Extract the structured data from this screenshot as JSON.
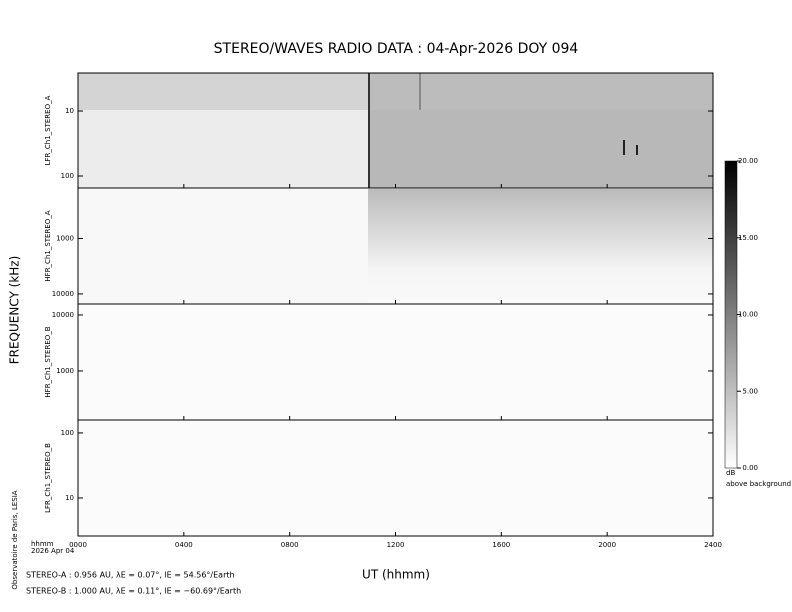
{
  "title": "STEREO/WAVES  RADIO  DATA : 04-Apr-2026  DOY 094",
  "ylabel": "FREQUENCY (kHz)",
  "xlabel": "UT (hhmm)",
  "time_unit": "hhmm",
  "date": "2026 Apr 04",
  "credit": "Observatoire de Paris, LESIA",
  "ephemeris": [
    "STEREO-A : 0.956 AU, λE = 0.07°, lE = 54.56°/Earth",
    "STEREO-B : 1.000 AU, λE = 0.11°, lE = −60.69°/Earth"
  ],
  "chart_data": [
    {
      "type": "spectrogram",
      "ylabel": "LFR_Ch1_STEREO_A",
      "log_scale": true,
      "ylim": [
        153,
        2.6
      ],
      "yticks": [
        10,
        100
      ],
      "xlim": [
        0,
        2400
      ]
    },
    {
      "type": "spectrogram",
      "ylabel": "HFR_Ch1_STEREO_A",
      "log_scale": true,
      "ylim": [
        15200,
        123
      ],
      "yticks": [
        1000,
        10000
      ],
      "xlim": [
        0,
        2400
      ]
    },
    {
      "type": "spectrogram",
      "ylabel": "HFR_Ch1_STEREO_B",
      "log_scale": true,
      "ylim": [
        133,
        15700
      ],
      "yticks": [
        1000,
        10000
      ],
      "xlim": [
        0,
        2400
      ]
    },
    {
      "type": "spectrogram",
      "ylabel": "LFR_Ch1_STEREO_B",
      "log_scale": true,
      "ylim": [
        2.6,
        158
      ],
      "yticks": [
        10,
        100
      ],
      "xlim": [
        0,
        2400
      ],
      "xticks": [
        {
          "value": 0,
          "label": "0000"
        },
        {
          "value": 400,
          "label": "0400"
        },
        {
          "value": 800,
          "label": "0800"
        },
        {
          "value": 1200,
          "label": "1200"
        },
        {
          "value": 1600,
          "label": "1600"
        },
        {
          "value": 2000,
          "label": "2000"
        },
        {
          "value": 2400,
          "label": "2400"
        }
      ]
    }
  ],
  "colorbar": {
    "label": "dB",
    "sublabel": "above background",
    "lim": [
      0,
      20
    ],
    "ticks": [
      {
        "value": 0,
        "label": "0.00"
      },
      {
        "value": 5,
        "label": "5.00"
      },
      {
        "value": 10,
        "label": "10.00"
      },
      {
        "value": 15,
        "label": "15.00"
      },
      {
        "value": 20,
        "label": "20.00"
      }
    ]
  }
}
